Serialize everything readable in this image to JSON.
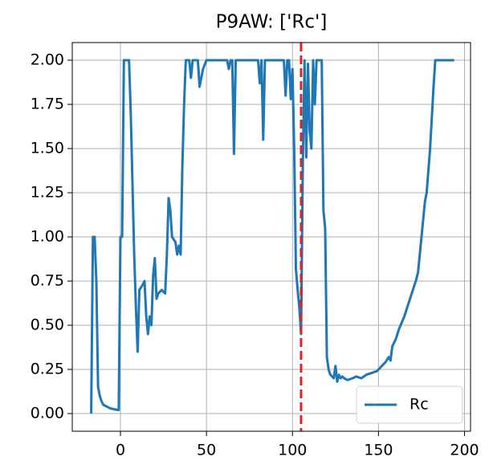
{
  "chart_data": {
    "type": "line",
    "title": "P9AW: ['Rc']",
    "x": [
      -17,
      -16,
      -15,
      -14,
      -13,
      -12,
      -11,
      -10,
      -8,
      -6,
      -4,
      -1,
      0,
      1,
      2,
      5,
      6,
      7,
      8,
      9,
      10,
      11,
      13,
      14,
      15,
      16,
      17,
      18,
      19,
      20,
      21,
      22,
      24,
      26,
      27,
      28,
      29,
      30,
      32,
      33,
      34,
      35,
      36,
      37,
      38,
      40,
      41,
      42,
      45,
      46,
      47,
      48,
      50,
      55,
      62,
      63,
      64,
      65,
      66,
      67,
      80,
      81,
      82,
      83,
      84,
      95,
      96,
      97,
      98,
      99,
      100,
      101,
      102,
      103,
      104,
      105,
      106,
      107,
      108,
      109,
      110,
      111,
      112,
      113,
      114,
      117,
      118,
      119,
      120,
      121,
      122,
      124,
      125,
      126,
      127,
      128,
      129,
      130,
      132,
      135,
      137,
      140,
      143,
      146,
      149,
      150,
      152,
      154,
      156,
      157,
      158,
      160,
      162,
      165,
      167,
      170,
      172,
      173,
      175,
      177,
      178,
      180,
      182,
      183,
      188,
      194
    ],
    "series": [
      {
        "name": "Rc",
        "color": "#1f77b4",
        "values": [
          0,
          1.0,
          1.0,
          0.75,
          0.15,
          0.1,
          0.07,
          0.05,
          0.04,
          0.03,
          0.025,
          0.02,
          1.0,
          1.0,
          2.0,
          2.0,
          1.7,
          1.3,
          0.9,
          0.6,
          0.35,
          0.7,
          0.73,
          0.75,
          0.55,
          0.45,
          0.55,
          0.5,
          0.78,
          0.88,
          0.65,
          0.68,
          0.7,
          0.68,
          0.9,
          1.22,
          1.15,
          1.0,
          0.97,
          0.9,
          0.95,
          0.9,
          1.4,
          1.75,
          2.0,
          2.0,
          1.9,
          2.0,
          2.0,
          1.85,
          1.9,
          1.95,
          2.0,
          2.0,
          2.0,
          1.95,
          2.0,
          2.0,
          1.47,
          2.0,
          2.0,
          1.87,
          2.0,
          1.55,
          2.0,
          2.0,
          1.8,
          2.0,
          2.0,
          1.78,
          1.95,
          1.5,
          0.82,
          0.7,
          0.6,
          0.45,
          1.4,
          2.0,
          1.45,
          1.98,
          1.6,
          1.5,
          2.0,
          1.75,
          2.0,
          2.0,
          1.15,
          1.05,
          0.32,
          0.25,
          0.22,
          0.2,
          0.27,
          0.18,
          0.22,
          0.2,
          0.21,
          0.2,
          0.19,
          0.2,
          0.21,
          0.2,
          0.22,
          0.23,
          0.24,
          0.25,
          0.27,
          0.29,
          0.32,
          0.3,
          0.38,
          0.42,
          0.48,
          0.55,
          0.61,
          0.7,
          0.76,
          0.8,
          1.0,
          1.2,
          1.25,
          1.5,
          1.85,
          2.0,
          2.0,
          2.0
        ]
      }
    ],
    "vlines": [
      {
        "x": 105,
        "color": "#d62728"
      }
    ],
    "xlim": [
      -28,
      203.5
    ],
    "ylim": [
      -0.1,
      2.1
    ],
    "xticks": [
      0,
      50,
      100,
      150,
      200
    ],
    "yticks": [
      {
        "value": 0,
        "label": "0.00"
      },
      {
        "value": 0.25,
        "label": "0.25"
      },
      {
        "value": 0.5,
        "label": "0.50"
      },
      {
        "value": 0.75,
        "label": "0.75"
      },
      {
        "value": 1,
        "label": "1.00"
      },
      {
        "value": 1.25,
        "label": "1.25"
      },
      {
        "value": 1.5,
        "label": "1.50"
      },
      {
        "value": 1.75,
        "label": "1.75"
      },
      {
        "value": 2,
        "label": "2.00"
      }
    ],
    "grid": true,
    "legend": "lower right"
  }
}
